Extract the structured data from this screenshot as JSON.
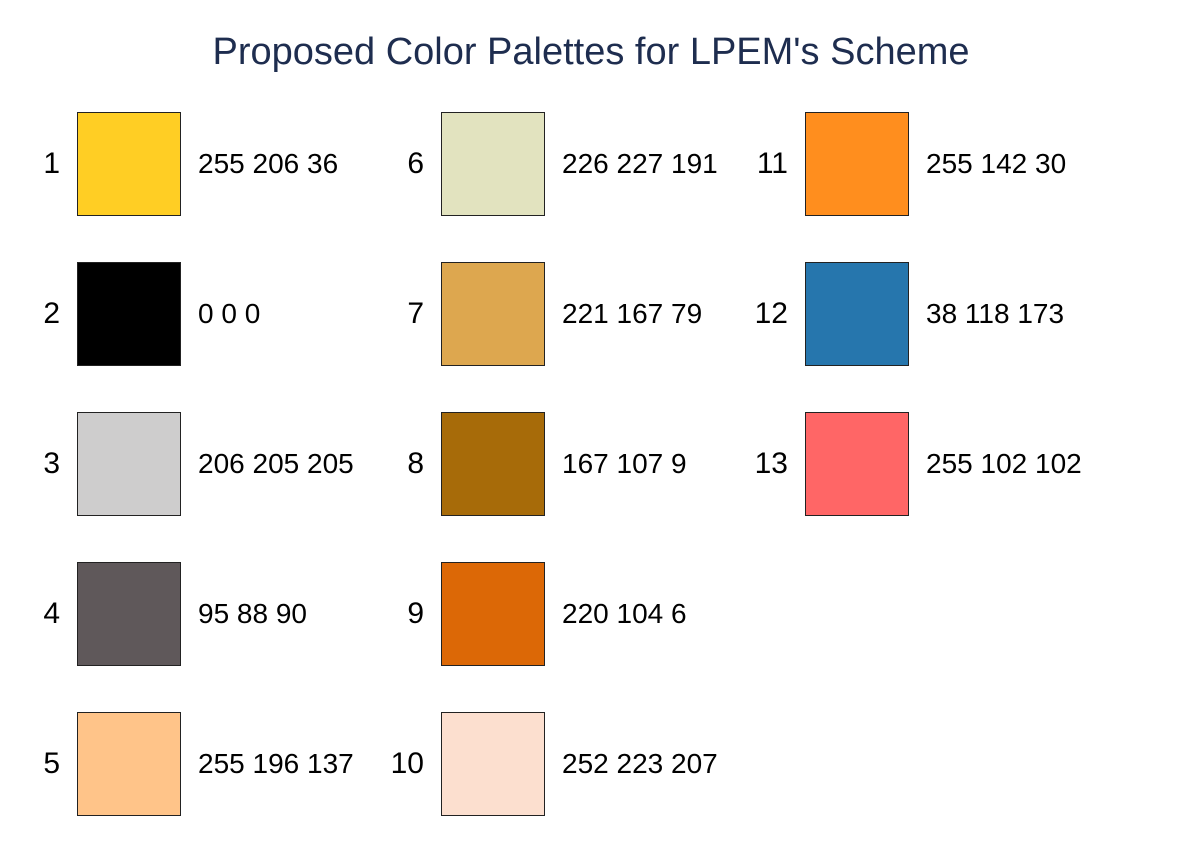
{
  "title": "Proposed Color Palettes for LPEM's Scheme",
  "palette": [
    {
      "number": "1",
      "rgb": "255 206 36",
      "color": "#ffce24"
    },
    {
      "number": "2",
      "rgb": "0 0 0",
      "color": "#000000"
    },
    {
      "number": "3",
      "rgb": "206 205 205",
      "color": "#cecdcd"
    },
    {
      "number": "4",
      "rgb": "95 88 90",
      "color": "#5f585a"
    },
    {
      "number": "5",
      "rgb": "255 196 137",
      "color": "#ffc489"
    },
    {
      "number": "6",
      "rgb": "226 227 191",
      "color": "#e2e3bf"
    },
    {
      "number": "7",
      "rgb": "221 167 79",
      "color": "#dda74f"
    },
    {
      "number": "8",
      "rgb": "167 107 9",
      "color": "#a76b09"
    },
    {
      "number": "9",
      "rgb": "220 104 6",
      "color": "#dc6806"
    },
    {
      "number": "10",
      "rgb": "252 223 207",
      "color": "#fcdfcf"
    },
    {
      "number": "11",
      "rgb": "255 142 30",
      "color": "#ff8e1e"
    },
    {
      "number": "12",
      "rgb": "38 118 173",
      "color": "#2676ad"
    },
    {
      "number": "13",
      "rgb": "255 102 102",
      "color": "#ff6666"
    }
  ]
}
